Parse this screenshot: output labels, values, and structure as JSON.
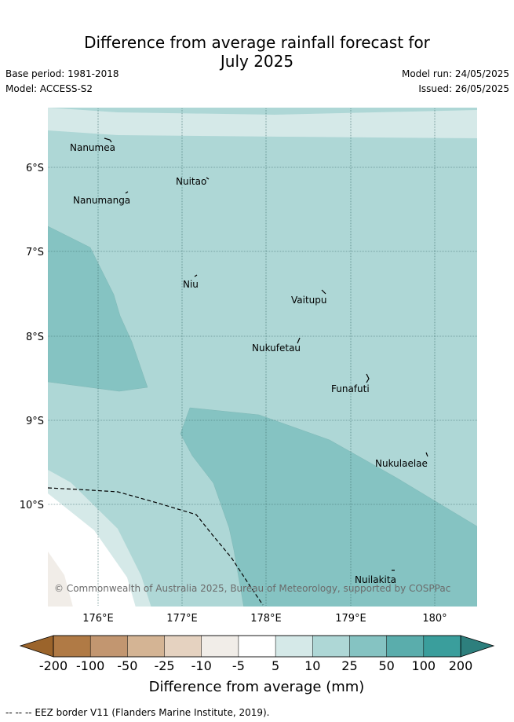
{
  "title_line1": "Difference from average rainfall forecast for",
  "title_line2": "July 2025",
  "base_period": "Base period: 1981-2018",
  "model": "Model: ACCESS-S2",
  "model_run": "Model run: 24/05/2025",
  "issued": "Issued: 26/05/2025",
  "lat_labels": [
    "6°S",
    "7°S",
    "8°S",
    "9°S",
    "10°S"
  ],
  "lon_labels": [
    "176°E",
    "177°E",
    "178°E",
    "179°E",
    "180°"
  ],
  "islands": [
    "Nanumea",
    "Nuitao",
    "Nanumanga",
    "Niu",
    "Vaitupu",
    "Nukufetau",
    "Funafuti",
    "Nukulaelae",
    "Nuilakita"
  ],
  "copyright": "© Commonwealth of Australia 2025, Bureau of Meteorology, supported by COSPPac",
  "colorbar": {
    "title": "Difference from average (mm)",
    "tick_labels": [
      "-200",
      "-100",
      "-50",
      "-25",
      "-10",
      "-5",
      "5",
      "10",
      "25",
      "50",
      "100",
      "200"
    ],
    "colors": [
      "#9b642b",
      "#b07a45",
      "#c29670",
      "#d4b494",
      "#e5d2c0",
      "#f1ede8",
      "#ffffff",
      "#d5e9e8",
      "#aed7d6",
      "#85c3c2",
      "#5aadac",
      "#3a9e9c",
      "#2d7f7d"
    ]
  },
  "footer": "-- -- -- EEZ border V11 (Flanders Marine Institute, 2019)."
}
